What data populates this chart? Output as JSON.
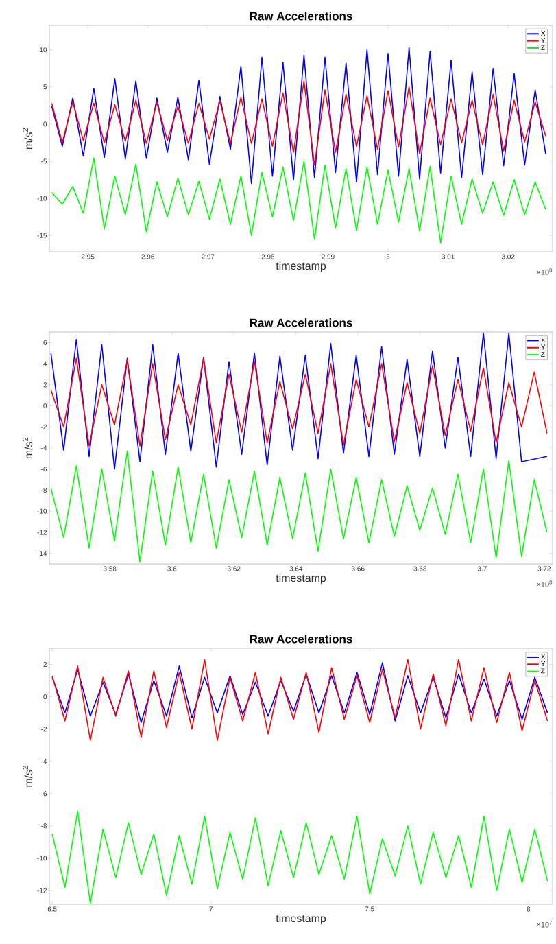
{
  "chart_data": [
    {
      "type": "line",
      "title": "Raw Accelerations",
      "xlabel": "timestamp",
      "ylabel": "m/s$^{2}$",
      "annotations": [
        "×10$^{8}$"
      ],
      "legend": "top right",
      "xlim": [
        2.9436,
        3.0274
      ],
      "ylim": [
        -17.2,
        13.3
      ],
      "xticks": [
        2.95,
        2.96,
        2.97,
        2.98,
        2.99,
        3,
        3.01,
        3.02
      ],
      "yticks": [
        -15,
        -10,
        -5,
        0,
        5,
        10
      ],
      "x": [
        2.944,
        2.94575,
        2.9475,
        2.94925,
        2.951,
        2.95275,
        2.9545,
        2.95625,
        2.958,
        2.95975,
        2.9615,
        2.96325,
        2.965,
        2.96675,
        2.9685,
        2.97025,
        2.972,
        2.97375,
        2.9755,
        2.97725,
        2.979,
        2.98075,
        2.9825,
        2.98425,
        2.986,
        2.98775,
        2.9895,
        2.99125,
        2.993,
        2.99475,
        2.9965,
        2.99825,
        3.0,
        3.00175,
        3.0035,
        3.00525,
        3.007,
        3.00875,
        3.0105,
        3.01225,
        3.014,
        3.01575,
        3.0175,
        3.01925,
        3.021,
        3.02275,
        3.0245,
        3.02625
      ],
      "series": [
        {
          "name": "X",
          "color": "#0000ff",
          "values": [
            2.4,
            -3.0,
            3.5,
            -4.3,
            4.8,
            -4.5,
            6.1,
            -4.7,
            5.8,
            -4.6,
            3.5,
            -3.8,
            3.6,
            -4.8,
            5.9,
            -5.4,
            3.7,
            -3.4,
            7.8,
            -8.0,
            9.0,
            -7.0,
            8.3,
            -7.5,
            9.3,
            -7.2,
            9.0,
            -6.5,
            8.2,
            -7.8,
            10.0,
            -6.8,
            9.5,
            -7.0,
            10.3,
            -7.4,
            9.8,
            -6.6,
            8.6,
            -7.2,
            7.0,
            -6.8,
            7.5,
            -5.6,
            6.8,
            -5.5,
            4.6,
            -4.0
          ]
        },
        {
          "name": "Y",
          "color": "#ff0000",
          "values": [
            2.8,
            -2.5,
            3.0,
            -2.2,
            2.8,
            -2.5,
            2.6,
            -2.3,
            3.2,
            -2.6,
            2.9,
            -2.2,
            2.4,
            -2.6,
            2.8,
            -2.0,
            3.1,
            -2.6,
            3.6,
            -2.6,
            3.4,
            -3.0,
            4.2,
            -3.8,
            5.8,
            -5.5,
            4.6,
            -3.8,
            4.0,
            -3.0,
            3.8,
            -3.4,
            4.5,
            -3.1,
            5.0,
            -4.0,
            3.5,
            -2.8,
            3.4,
            -2.5,
            3.2,
            -2.8,
            4.0,
            -3.6,
            3.2,
            -2.4,
            3.0,
            -1.6
          ]
        },
        {
          "name": "Z",
          "color": "#00ff00",
          "values": [
            -9.2,
            -10.8,
            -8.4,
            -12.0,
            -4.6,
            -14.1,
            -7.0,
            -12.2,
            -5.4,
            -14.5,
            -7.8,
            -12.5,
            -7.3,
            -12.2,
            -7.7,
            -12.8,
            -7.4,
            -13.5,
            -7.0,
            -15.0,
            -6.5,
            -12.5,
            -5.8,
            -13.0,
            -5.0,
            -15.5,
            -5.5,
            -14.0,
            -6.0,
            -14.3,
            -5.8,
            -13.5,
            -6.2,
            -13.2,
            -6.0,
            -14.4,
            -5.7,
            -16.0,
            -7.0,
            -13.5,
            -7.4,
            -12.0,
            -7.8,
            -12.3,
            -7.5,
            -12.2,
            -7.8,
            -11.5
          ]
        }
      ]
    },
    {
      "type": "line",
      "title": "Raw Accelerations",
      "xlabel": "timestamp",
      "ylabel": "m/s$^{2}$",
      "annotations": [
        "×10$^{8}$"
      ],
      "legend": "top right",
      "xlim": [
        3.5605,
        3.7227
      ],
      "ylim": [
        -15,
        7
      ],
      "xticks": [
        3.58,
        3.6,
        3.62,
        3.64,
        3.66,
        3.68,
        3.7,
        3.72
      ],
      "yticks": [
        -14,
        -12,
        -10,
        -8,
        -6,
        -4,
        -2,
        0,
        2,
        4,
        6
      ],
      "x": [
        3.561,
        3.5651,
        3.5692,
        3.5733,
        3.5774,
        3.5815,
        3.5856,
        3.5897,
        3.5938,
        3.5979,
        3.602,
        3.6061,
        3.6102,
        3.6143,
        3.6184,
        3.6225,
        3.6266,
        3.6307,
        3.6348,
        3.6389,
        3.643,
        3.6471,
        3.6512,
        3.6553,
        3.6594,
        3.6635,
        3.6676,
        3.6717,
        3.6758,
        3.6799,
        3.684,
        3.6881,
        3.6922,
        3.6963,
        3.7004,
        3.7045,
        3.7086,
        3.7127,
        3.7168,
        3.7209
      ],
      "series": [
        {
          "name": "X",
          "color": "#0000ff",
          "values": [
            5.0,
            -4.2,
            6.3,
            -4.8,
            5.8,
            -6.0,
            4.5,
            -5.3,
            5.8,
            -4.6,
            5.0,
            -4.3,
            4.6,
            -5.8,
            4.2,
            -4.6,
            5.0,
            -5.6,
            4.7,
            -4.2,
            4.8,
            -5.0,
            5.9,
            -4.5,
            4.8,
            -4.8,
            5.6,
            -4.6,
            4.4,
            -4.8,
            5.2,
            -4.0,
            4.6,
            -4.8,
            6.9,
            -5.0,
            6.9,
            -5.3,
            null,
            -4.8
          ]
        },
        {
          "name": "Y",
          "color": "#ff0000",
          "values": [
            1.5,
            -2.0,
            4.5,
            -3.8,
            2.0,
            -1.8,
            4.3,
            -3.8,
            4.0,
            -3.2,
            2.0,
            -1.8,
            4.5,
            -3.5,
            3.0,
            -2.5,
            4.2,
            -3.5,
            2.3,
            -2.2,
            3.0,
            -2.6,
            4.0,
            -3.7,
            2.5,
            -2.0,
            4.0,
            -3.4,
            2.2,
            -2.6,
            3.8,
            -2.8,
            2.5,
            -2.4,
            3.6,
            -3.5,
            2.2,
            -2.0,
            3.2,
            -2.6
          ]
        },
        {
          "name": "Z",
          "color": "#00ff00",
          "values": [
            -7.8,
            -12.5,
            -5.7,
            -13.5,
            -6.0,
            -12.8,
            -4.3,
            -14.8,
            -6.2,
            -13.2,
            -5.8,
            -13.0,
            -6.5,
            -13.5,
            -7.0,
            -12.5,
            -6.2,
            -13.2,
            -6.8,
            -12.6,
            -6.4,
            -13.8,
            -6.0,
            -12.6,
            -6.8,
            -13.0,
            -7.0,
            -12.4,
            -7.6,
            -11.8,
            -7.8,
            -12.2,
            -6.5,
            -13.0,
            -6.0,
            -14.4,
            -5.2,
            -14.3,
            -7.0,
            -12.0
          ]
        }
      ]
    },
    {
      "type": "line",
      "title": "Raw Accelerations",
      "xlabel": "timestamp",
      "ylabel": "m/s$^{2}$",
      "annotations": [
        "×10$^{7}$"
      ],
      "legend": "top right",
      "xlim": [
        6.491,
        8.076
      ],
      "ylim": [
        -12.85,
        3
      ],
      "xticks": [
        6.5,
        7,
        7.5,
        8
      ],
      "yticks": [
        -12,
        -10,
        -8,
        -6,
        -4,
        -2,
        0,
        2
      ],
      "x": [
        6.5,
        6.54,
        6.58,
        6.62,
        6.66,
        6.7,
        6.74,
        6.78,
        6.82,
        6.86,
        6.9,
        6.94,
        6.98,
        7.02,
        7.06,
        7.1,
        7.14,
        7.18,
        7.22,
        7.26,
        7.3,
        7.34,
        7.38,
        7.42,
        7.46,
        7.5,
        7.54,
        7.58,
        7.62,
        7.66,
        7.7,
        7.74,
        7.78,
        7.82,
        7.86,
        7.9,
        7.94,
        7.98,
        8.02,
        8.06
      ],
      "series": [
        {
          "name": "X",
          "color": "#0000ff",
          "values": [
            1.2,
            -1.0,
            1.7,
            -1.2,
            0.9,
            -1.1,
            1.4,
            -1.6,
            1.0,
            -1.2,
            1.9,
            -1.3,
            1.2,
            -1.0,
            1.3,
            -1.1,
            0.9,
            -1.2,
            1.0,
            -0.9,
            1.4,
            -1.0,
            1.3,
            -1.0,
            1.5,
            -1.1,
            2.1,
            -1.5,
            1.3,
            -1.0,
            1.2,
            -1.3,
            1.4,
            -1.0,
            1.1,
            -1.2,
            1.0,
            -1.4,
            1.2,
            -1.0
          ]
        },
        {
          "name": "Y",
          "color": "#ff0000",
          "values": [
            1.3,
            -1.5,
            1.9,
            -2.7,
            1.2,
            -1.2,
            1.6,
            -2.5,
            1.6,
            -1.9,
            1.5,
            -2.0,
            2.3,
            -2.7,
            1.2,
            -1.5,
            1.5,
            -2.3,
            1.2,
            -1.4,
            1.5,
            -2.2,
            1.8,
            -1.4,
            1.3,
            -1.6,
            1.7,
            -1.3,
            2.3,
            -2.0,
            1.4,
            -1.8,
            2.3,
            -1.5,
            1.8,
            -1.6,
            1.5,
            -2.1,
            1.0,
            -1.5
          ]
        },
        {
          "name": "Z",
          "color": "#00ff00",
          "values": [
            -8.5,
            -11.8,
            -7.1,
            -12.8,
            -8.2,
            -11.2,
            -7.8,
            -11.0,
            -8.5,
            -12.3,
            -8.6,
            -11.6,
            -7.4,
            -11.9,
            -8.4,
            -11.3,
            -7.5,
            -11.7,
            -8.3,
            -11.2,
            -7.8,
            -11.0,
            -8.6,
            -11.3,
            -7.4,
            -12.2,
            -8.8,
            -11.1,
            -8.0,
            -11.6,
            -8.4,
            -11.2,
            -8.6,
            -11.8,
            -7.4,
            -12.0,
            -8.2,
            -11.5,
            -8.2,
            -11.4
          ]
        }
      ]
    }
  ]
}
